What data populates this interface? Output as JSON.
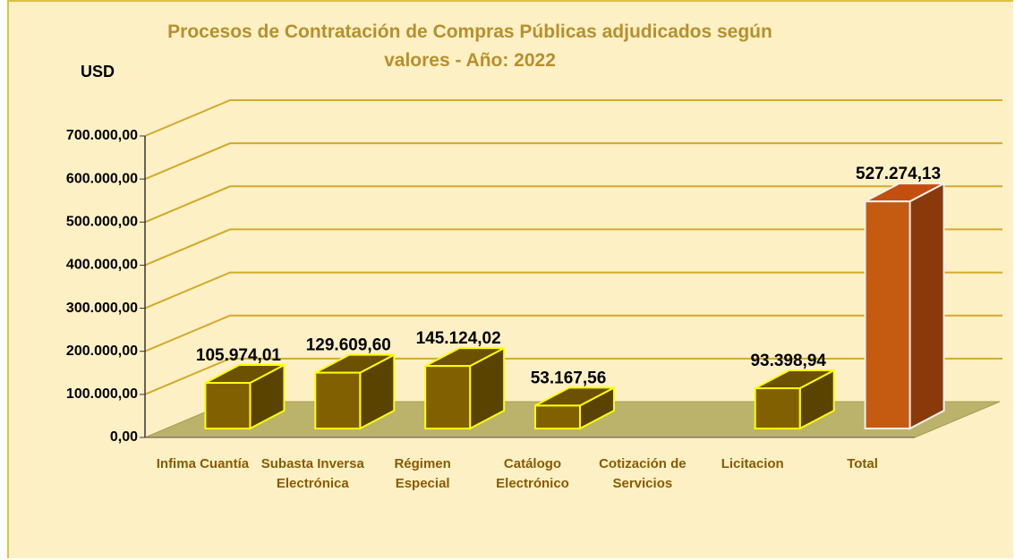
{
  "chart_data": {
    "type": "bar3d",
    "title": "Procesos de Contratación de Compras Públicas adjudicados  según valores - Año: 2022",
    "y_label": "USD",
    "categories": [
      "Infima Cuantía",
      "Subasta Inversa Electrónica",
      "Régimen Especial",
      "Catálogo Electrónico",
      "Cotización de Servicios",
      "Licitacion",
      "Total"
    ],
    "values": [
      105974.01,
      129609.6,
      145124.02,
      53167.56,
      null,
      93398.94,
      527274.13
    ],
    "value_labels": [
      "105.974,01",
      "129.609,60",
      "145.124,02",
      "53.167,56",
      null,
      "93.398,94",
      "527.274,13"
    ],
    "colors": [
      "#806000",
      "#806000",
      "#806000",
      "#806000",
      "#806000",
      "#806000",
      "#c55a11"
    ],
    "ylim": [
      0,
      700000
    ],
    "yticks": [
      {
        "value": 0,
        "label": "0,00"
      },
      {
        "value": 100000,
        "label": "100.000,00"
      },
      {
        "value": 200000,
        "label": "200.000,00"
      },
      {
        "value": 300000,
        "label": "300.000,00"
      },
      {
        "value": 400000,
        "label": "400.000,00"
      },
      {
        "value": 500000,
        "label": "500.000,00"
      },
      {
        "value": 600000,
        "label": "600.000,00"
      },
      {
        "value": 700000,
        "label": "700.000,00"
      }
    ],
    "grid": true
  }
}
